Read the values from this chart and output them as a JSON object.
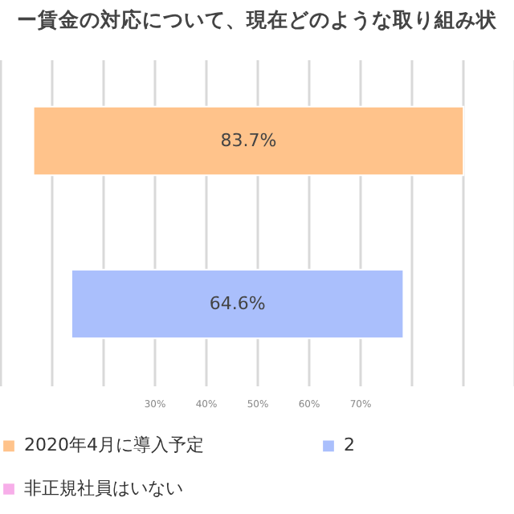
{
  "chart_data": {
    "type": "bar",
    "orientation": "horizontal",
    "title": "ー賃金の対応について、現在どのような取り組み状",
    "categories": [
      null,
      null
    ],
    "series": [
      {
        "name": "2020年4月に導入予定",
        "color": "#ffc38b",
        "values": [
          83.7,
          null
        ],
        "base": [
          6.5,
          null
        ],
        "value_labels": [
          "83.7%",
          null
        ]
      },
      {
        "name": "2",
        "color": "#aabffc",
        "values": [
          null,
          64.6
        ],
        "base": [
          null,
          13.9
        ],
        "value_labels": [
          null,
          "64.6%"
        ]
      },
      {
        "name": "非正規社員はいない",
        "color": "#f7aee9",
        "values": [
          null,
          null
        ]
      }
    ],
    "xlim": [
      0,
      100
    ],
    "xticks": [
      {
        "value": 0,
        "label": null
      },
      {
        "value": 10,
        "label": null
      },
      {
        "value": 20,
        "label": null
      },
      {
        "value": 30,
        "label": "30%"
      },
      {
        "value": 40,
        "label": "40%"
      },
      {
        "value": 50,
        "label": "50%"
      },
      {
        "value": 60,
        "label": "60%"
      },
      {
        "value": 70,
        "label": "70%"
      },
      {
        "value": 80,
        "label": null
      },
      {
        "value": 90,
        "label": null
      },
      {
        "value": 100,
        "label": null
      }
    ],
    "grid": "x",
    "legend": "bottom"
  }
}
